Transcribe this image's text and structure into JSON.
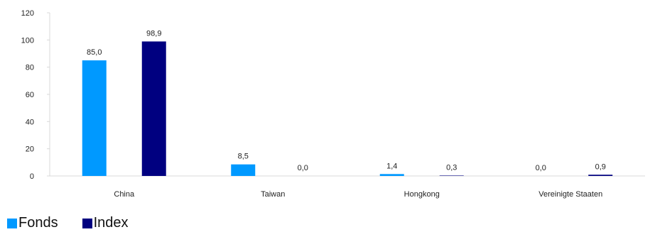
{
  "chart_data": {
    "type": "bar",
    "categories": [
      "China",
      "Taiwan",
      "Hongkong",
      "Vereinigte Staaten"
    ],
    "series": [
      {
        "name": "Fonds",
        "values": [
          85.0,
          8.5,
          1.4,
          0.0
        ],
        "labels": [
          "85,0",
          "8,5",
          "1,4",
          "0,0"
        ],
        "color": "#0099ff"
      },
      {
        "name": "Index",
        "values": [
          98.9,
          0.0,
          0.3,
          0.9
        ],
        "labels": [
          "98,9",
          "0,0",
          "0,3",
          "0,9"
        ],
        "color": "#000080"
      }
    ],
    "yticks": [
      "0",
      "20",
      "40",
      "60",
      "80",
      "100",
      "120"
    ],
    "ylim": [
      0,
      120
    ],
    "grid": false,
    "legend_position": "bottom-left"
  }
}
